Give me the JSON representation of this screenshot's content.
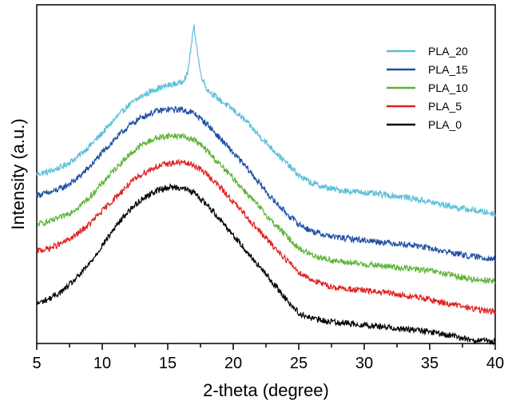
{
  "chart_data": {
    "type": "line",
    "title": "",
    "xlabel": "2-theta (degree)",
    "ylabel": "Intensity (a.u.)",
    "xlim": [
      5,
      40
    ],
    "ylim": [
      0,
      1
    ],
    "xticks": [
      5,
      10,
      15,
      20,
      25,
      30,
      35,
      40
    ],
    "xtick_labels": [
      "5",
      "10",
      "15",
      "20",
      "25",
      "30",
      "35",
      "40"
    ],
    "y_tick_labels_shown": false,
    "grid": false,
    "legend_position": "top-right",
    "series": [
      {
        "name": "PLA_20",
        "color": "#5bc0d8",
        "x": [
          5,
          6,
          7,
          8,
          9,
          10,
          11,
          12,
          13,
          14,
          15,
          16,
          16.5,
          17,
          17.5,
          18,
          19,
          20,
          21,
          22,
          23,
          24,
          25,
          26,
          27,
          28,
          29,
          30,
          31,
          32,
          33,
          34,
          35,
          36,
          37,
          38,
          39,
          40
        ],
        "y": [
          0.5,
          0.508,
          0.523,
          0.547,
          0.582,
          0.621,
          0.664,
          0.703,
          0.73,
          0.75,
          0.762,
          0.77,
          0.793,
          0.938,
          0.797,
          0.75,
          0.718,
          0.69,
          0.655,
          0.613,
          0.574,
          0.535,
          0.496,
          0.473,
          0.461,
          0.453,
          0.449,
          0.446,
          0.441,
          0.437,
          0.433,
          0.426,
          0.418,
          0.41,
          0.402,
          0.395,
          0.389,
          0.383
        ]
      },
      {
        "name": "PLA_15",
        "color": "#1f4fa3",
        "x": [
          5,
          6,
          7,
          8,
          9,
          10,
          11,
          12,
          13,
          14,
          15,
          16,
          17,
          18,
          19,
          20,
          21,
          22,
          23,
          24,
          25,
          26,
          27,
          28,
          29,
          30,
          31,
          32,
          33,
          34,
          35,
          36,
          37,
          38,
          39,
          40
        ],
        "y": [
          0.438,
          0.445,
          0.46,
          0.484,
          0.52,
          0.563,
          0.605,
          0.641,
          0.668,
          0.684,
          0.691,
          0.691,
          0.68,
          0.648,
          0.605,
          0.563,
          0.52,
          0.473,
          0.426,
          0.387,
          0.352,
          0.332,
          0.32,
          0.313,
          0.309,
          0.305,
          0.301,
          0.297,
          0.293,
          0.289,
          0.281,
          0.273,
          0.266,
          0.258,
          0.254,
          0.25
        ]
      },
      {
        "name": "PLA_10",
        "color": "#5cb335",
        "x": [
          5,
          6,
          7,
          8,
          9,
          10,
          11,
          12,
          13,
          14,
          15,
          16,
          17,
          18,
          19,
          20,
          21,
          22,
          23,
          24,
          25,
          26,
          27,
          28,
          29,
          30,
          31,
          32,
          33,
          34,
          35,
          36,
          37,
          38,
          39,
          40
        ],
        "y": [
          0.352,
          0.36,
          0.375,
          0.398,
          0.43,
          0.473,
          0.516,
          0.555,
          0.586,
          0.605,
          0.613,
          0.613,
          0.602,
          0.57,
          0.527,
          0.488,
          0.445,
          0.402,
          0.359,
          0.32,
          0.281,
          0.262,
          0.25,
          0.242,
          0.238,
          0.234,
          0.23,
          0.227,
          0.223,
          0.219,
          0.215,
          0.207,
          0.199,
          0.191,
          0.188,
          0.184
        ]
      },
      {
        "name": "PLA_5",
        "color": "#e02020",
        "x": [
          5,
          6,
          7,
          8,
          9,
          10,
          11,
          12,
          13,
          14,
          15,
          16,
          17,
          18,
          19,
          20,
          21,
          22,
          23,
          24,
          25,
          26,
          27,
          28,
          29,
          30,
          31,
          32,
          33,
          34,
          35,
          36,
          37,
          38,
          39,
          40
        ],
        "y": [
          0.273,
          0.281,
          0.297,
          0.32,
          0.352,
          0.391,
          0.43,
          0.469,
          0.5,
          0.52,
          0.531,
          0.535,
          0.527,
          0.5,
          0.461,
          0.418,
          0.375,
          0.332,
          0.289,
          0.25,
          0.211,
          0.188,
          0.172,
          0.164,
          0.16,
          0.156,
          0.152,
          0.148,
          0.141,
          0.137,
          0.129,
          0.121,
          0.113,
          0.105,
          0.098,
          0.094
        ]
      },
      {
        "name": "PLA_0",
        "color": "#000000",
        "x": [
          5,
          6,
          7,
          8,
          9,
          10,
          11,
          12,
          13,
          14,
          15,
          16,
          17,
          18,
          19,
          20,
          21,
          22,
          23,
          24,
          25,
          26,
          27,
          28,
          29,
          30,
          31,
          32,
          33,
          34,
          35,
          36,
          37,
          38,
          39,
          40
        ],
        "y": [
          0.117,
          0.133,
          0.156,
          0.191,
          0.234,
          0.289,
          0.344,
          0.391,
          0.426,
          0.449,
          0.461,
          0.461,
          0.445,
          0.41,
          0.367,
          0.32,
          0.273,
          0.227,
          0.18,
          0.133,
          0.09,
          0.074,
          0.066,
          0.063,
          0.059,
          0.055,
          0.051,
          0.047,
          0.043,
          0.039,
          0.035,
          0.027,
          0.02,
          0.012,
          0.008,
          0.004
        ]
      }
    ]
  }
}
